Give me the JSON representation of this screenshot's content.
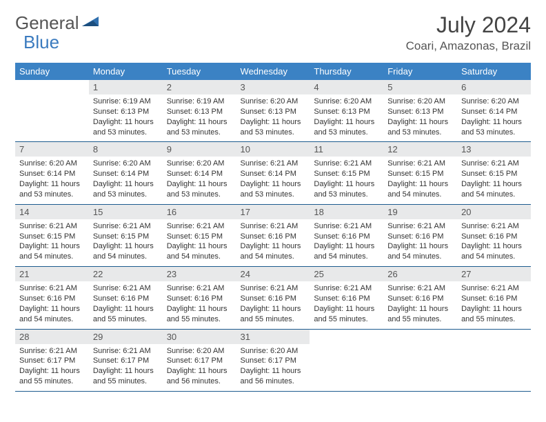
{
  "logo": {
    "text1": "General",
    "text2": "Blue"
  },
  "header": {
    "title": "July 2024",
    "location": "Coari, Amazonas, Brazil"
  },
  "colors": {
    "header_bg": "#3b82c4",
    "header_text": "#ffffff",
    "daynum_bg": "#e8e9ea",
    "border": "#1b5a8e",
    "logo_blue": "#3b7bbf",
    "body_text": "#333333"
  },
  "weekdays": [
    "Sunday",
    "Monday",
    "Tuesday",
    "Wednesday",
    "Thursday",
    "Friday",
    "Saturday"
  ],
  "weeks": [
    [
      {
        "n": "",
        "l1": "",
        "l2": "",
        "l3": "",
        "l4": ""
      },
      {
        "n": "1",
        "l1": "Sunrise: 6:19 AM",
        "l2": "Sunset: 6:13 PM",
        "l3": "Daylight: 11 hours",
        "l4": "and 53 minutes."
      },
      {
        "n": "2",
        "l1": "Sunrise: 6:19 AM",
        "l2": "Sunset: 6:13 PM",
        "l3": "Daylight: 11 hours",
        "l4": "and 53 minutes."
      },
      {
        "n": "3",
        "l1": "Sunrise: 6:20 AM",
        "l2": "Sunset: 6:13 PM",
        "l3": "Daylight: 11 hours",
        "l4": "and 53 minutes."
      },
      {
        "n": "4",
        "l1": "Sunrise: 6:20 AM",
        "l2": "Sunset: 6:13 PM",
        "l3": "Daylight: 11 hours",
        "l4": "and 53 minutes."
      },
      {
        "n": "5",
        "l1": "Sunrise: 6:20 AM",
        "l2": "Sunset: 6:13 PM",
        "l3": "Daylight: 11 hours",
        "l4": "and 53 minutes."
      },
      {
        "n": "6",
        "l1": "Sunrise: 6:20 AM",
        "l2": "Sunset: 6:14 PM",
        "l3": "Daylight: 11 hours",
        "l4": "and 53 minutes."
      }
    ],
    [
      {
        "n": "7",
        "l1": "Sunrise: 6:20 AM",
        "l2": "Sunset: 6:14 PM",
        "l3": "Daylight: 11 hours",
        "l4": "and 53 minutes."
      },
      {
        "n": "8",
        "l1": "Sunrise: 6:20 AM",
        "l2": "Sunset: 6:14 PM",
        "l3": "Daylight: 11 hours",
        "l4": "and 53 minutes."
      },
      {
        "n": "9",
        "l1": "Sunrise: 6:20 AM",
        "l2": "Sunset: 6:14 PM",
        "l3": "Daylight: 11 hours",
        "l4": "and 53 minutes."
      },
      {
        "n": "10",
        "l1": "Sunrise: 6:21 AM",
        "l2": "Sunset: 6:14 PM",
        "l3": "Daylight: 11 hours",
        "l4": "and 53 minutes."
      },
      {
        "n": "11",
        "l1": "Sunrise: 6:21 AM",
        "l2": "Sunset: 6:15 PM",
        "l3": "Daylight: 11 hours",
        "l4": "and 53 minutes."
      },
      {
        "n": "12",
        "l1": "Sunrise: 6:21 AM",
        "l2": "Sunset: 6:15 PM",
        "l3": "Daylight: 11 hours",
        "l4": "and 54 minutes."
      },
      {
        "n": "13",
        "l1": "Sunrise: 6:21 AM",
        "l2": "Sunset: 6:15 PM",
        "l3": "Daylight: 11 hours",
        "l4": "and 54 minutes."
      }
    ],
    [
      {
        "n": "14",
        "l1": "Sunrise: 6:21 AM",
        "l2": "Sunset: 6:15 PM",
        "l3": "Daylight: 11 hours",
        "l4": "and 54 minutes."
      },
      {
        "n": "15",
        "l1": "Sunrise: 6:21 AM",
        "l2": "Sunset: 6:15 PM",
        "l3": "Daylight: 11 hours",
        "l4": "and 54 minutes."
      },
      {
        "n": "16",
        "l1": "Sunrise: 6:21 AM",
        "l2": "Sunset: 6:15 PM",
        "l3": "Daylight: 11 hours",
        "l4": "and 54 minutes."
      },
      {
        "n": "17",
        "l1": "Sunrise: 6:21 AM",
        "l2": "Sunset: 6:16 PM",
        "l3": "Daylight: 11 hours",
        "l4": "and 54 minutes."
      },
      {
        "n": "18",
        "l1": "Sunrise: 6:21 AM",
        "l2": "Sunset: 6:16 PM",
        "l3": "Daylight: 11 hours",
        "l4": "and 54 minutes."
      },
      {
        "n": "19",
        "l1": "Sunrise: 6:21 AM",
        "l2": "Sunset: 6:16 PM",
        "l3": "Daylight: 11 hours",
        "l4": "and 54 minutes."
      },
      {
        "n": "20",
        "l1": "Sunrise: 6:21 AM",
        "l2": "Sunset: 6:16 PM",
        "l3": "Daylight: 11 hours",
        "l4": "and 54 minutes."
      }
    ],
    [
      {
        "n": "21",
        "l1": "Sunrise: 6:21 AM",
        "l2": "Sunset: 6:16 PM",
        "l3": "Daylight: 11 hours",
        "l4": "and 54 minutes."
      },
      {
        "n": "22",
        "l1": "Sunrise: 6:21 AM",
        "l2": "Sunset: 6:16 PM",
        "l3": "Daylight: 11 hours",
        "l4": "and 55 minutes."
      },
      {
        "n": "23",
        "l1": "Sunrise: 6:21 AM",
        "l2": "Sunset: 6:16 PM",
        "l3": "Daylight: 11 hours",
        "l4": "and 55 minutes."
      },
      {
        "n": "24",
        "l1": "Sunrise: 6:21 AM",
        "l2": "Sunset: 6:16 PM",
        "l3": "Daylight: 11 hours",
        "l4": "and 55 minutes."
      },
      {
        "n": "25",
        "l1": "Sunrise: 6:21 AM",
        "l2": "Sunset: 6:16 PM",
        "l3": "Daylight: 11 hours",
        "l4": "and 55 minutes."
      },
      {
        "n": "26",
        "l1": "Sunrise: 6:21 AM",
        "l2": "Sunset: 6:16 PM",
        "l3": "Daylight: 11 hours",
        "l4": "and 55 minutes."
      },
      {
        "n": "27",
        "l1": "Sunrise: 6:21 AM",
        "l2": "Sunset: 6:16 PM",
        "l3": "Daylight: 11 hours",
        "l4": "and 55 minutes."
      }
    ],
    [
      {
        "n": "28",
        "l1": "Sunrise: 6:21 AM",
        "l2": "Sunset: 6:17 PM",
        "l3": "Daylight: 11 hours",
        "l4": "and 55 minutes."
      },
      {
        "n": "29",
        "l1": "Sunrise: 6:21 AM",
        "l2": "Sunset: 6:17 PM",
        "l3": "Daylight: 11 hours",
        "l4": "and 55 minutes."
      },
      {
        "n": "30",
        "l1": "Sunrise: 6:20 AM",
        "l2": "Sunset: 6:17 PM",
        "l3": "Daylight: 11 hours",
        "l4": "and 56 minutes."
      },
      {
        "n": "31",
        "l1": "Sunrise: 6:20 AM",
        "l2": "Sunset: 6:17 PM",
        "l3": "Daylight: 11 hours",
        "l4": "and 56 minutes."
      },
      {
        "n": "",
        "l1": "",
        "l2": "",
        "l3": "",
        "l4": ""
      },
      {
        "n": "",
        "l1": "",
        "l2": "",
        "l3": "",
        "l4": ""
      },
      {
        "n": "",
        "l1": "",
        "l2": "",
        "l3": "",
        "l4": ""
      }
    ]
  ]
}
